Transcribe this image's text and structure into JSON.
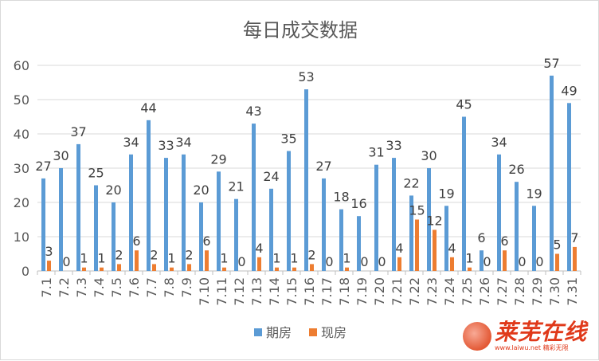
{
  "chart_data": {
    "type": "bar",
    "title": "每日成交数据",
    "categories": [
      "7.1",
      "7.2",
      "7.3",
      "7.4",
      "7.5",
      "7.6",
      "7.7",
      "7.8",
      "7.9",
      "7.10",
      "7.11",
      "7.12",
      "7.13",
      "7.14",
      "7.15",
      "7.16",
      "7.17",
      "7.18",
      "7.19",
      "7.20",
      "7.21",
      "7.22",
      "7.23",
      "7.24",
      "7.25",
      "7.26",
      "7.27",
      "7.28",
      "7.29",
      "7.30",
      "7.31"
    ],
    "series": [
      {
        "name": "期房",
        "color": "#5b9bd5",
        "values": [
          27,
          30,
          37,
          25,
          20,
          34,
          44,
          33,
          34,
          20,
          29,
          21,
          43,
          24,
          35,
          53,
          27,
          18,
          16,
          31,
          33,
          22,
          30,
          19,
          45,
          6,
          34,
          26,
          19,
          57,
          49
        ]
      },
      {
        "name": "现房",
        "color": "#ed7d31",
        "values": [
          3,
          0,
          1,
          1,
          2,
          6,
          2,
          1,
          2,
          6,
          1,
          0,
          4,
          1,
          1,
          2,
          0,
          1,
          0,
          0,
          4,
          15,
          12,
          4,
          1,
          0,
          6,
          0,
          0,
          5,
          7
        ]
      }
    ],
    "ylim": [
      0,
      60
    ],
    "yticks": [
      0,
      10,
      20,
      30,
      40,
      50,
      60
    ],
    "grid": true,
    "legend": "bottom-center",
    "xlabel": "",
    "ylabel": ""
  },
  "watermark": {
    "title": "莱芜在线",
    "subtitle": "www.laiwu.net 精彩无限",
    "logo_icon": "flame-swirl-icon"
  }
}
